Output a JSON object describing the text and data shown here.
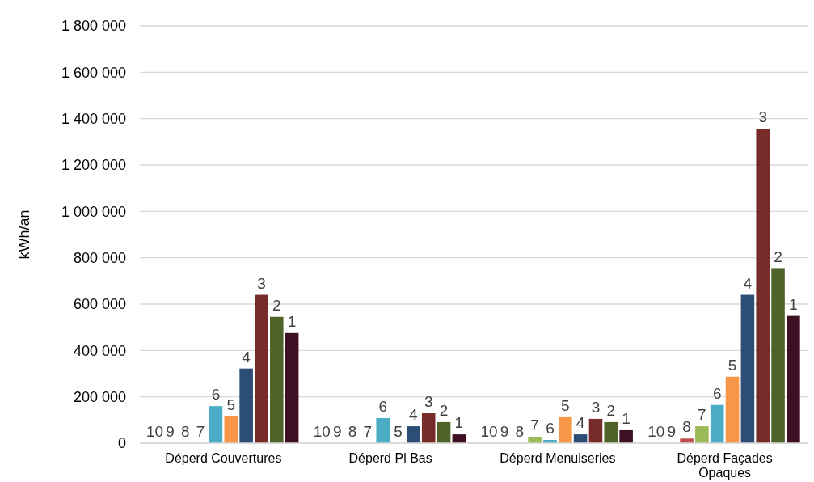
{
  "chart_data": {
    "type": "bar",
    "ylabel": "kWh/an",
    "categories": [
      "Déperd Couvertures",
      "Déperd Pl Bas",
      "Déperd Menuiseries",
      "Déperd Façades Opaques"
    ],
    "series": [
      {
        "name": "10",
        "values": [
          0,
          0,
          0,
          0
        ]
      },
      {
        "name": "9",
        "values": [
          0,
          0,
          0,
          0
        ]
      },
      {
        "name": "8",
        "color": "#c0504d",
        "values": [
          0,
          0,
          0,
          20000
        ]
      },
      {
        "name": "7",
        "color": "#9bbb59",
        "values": [
          0,
          0,
          28000,
          73000
        ]
      },
      {
        "name": "6",
        "color": "#4bacc6",
        "values": [
          160000,
          108000,
          14000,
          165000
        ]
      },
      {
        "name": "5",
        "color": "#f79646",
        "values": [
          115000,
          0,
          112000,
          287000
        ]
      },
      {
        "name": "4",
        "color": "#2c4d75",
        "values": [
          322000,
          73000,
          38000,
          640000
        ]
      },
      {
        "name": "3",
        "color": "#772c2a",
        "values": [
          640000,
          129000,
          105000,
          1357000
        ]
      },
      {
        "name": "2",
        "color": "#4f6228",
        "values": [
          545000,
          91000,
          91000,
          752000
        ]
      },
      {
        "name": "1",
        "color": "#3f0f24",
        "values": [
          475000,
          38000,
          56000,
          549000
        ]
      }
    ],
    "ylim": [
      0,
      1800000
    ],
    "yticks": [
      {
        "value": 0,
        "label": "0"
      },
      {
        "value": 200000,
        "label": "200 000"
      },
      {
        "value": 400000,
        "label": "400 000"
      },
      {
        "value": 600000,
        "label": "600 000"
      },
      {
        "value": 800000,
        "label": "800 000"
      },
      {
        "value": 1000000,
        "label": "1 000 000"
      },
      {
        "value": 1200000,
        "label": "1 200 000"
      },
      {
        "value": 1400000,
        "label": "1 400 000"
      },
      {
        "value": 1600000,
        "label": "1 600 000"
      },
      {
        "value": 1800000,
        "label": "1 800 000"
      }
    ],
    "grid": "y"
  }
}
